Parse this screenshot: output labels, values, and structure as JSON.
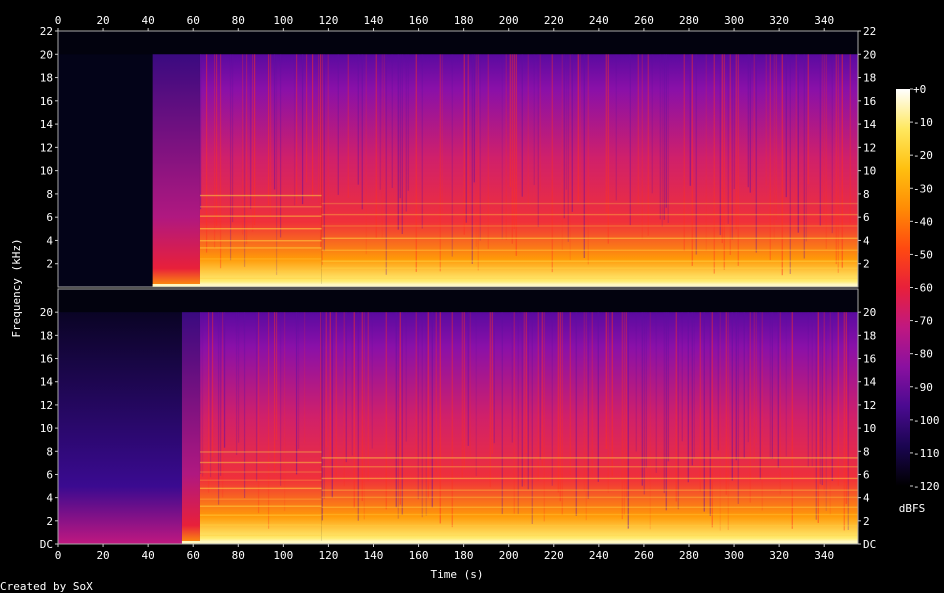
{
  "chart_data": {
    "type": "heatmap",
    "title": "",
    "xlabel": "Time (s)",
    "ylabel": "Frequency (kHz)",
    "xlim": [
      0,
      355
    ],
    "ylim": [
      0,
      22
    ],
    "x_ticks": [
      0,
      20,
      40,
      60,
      80,
      100,
      120,
      140,
      160,
      180,
      200,
      220,
      240,
      260,
      280,
      300,
      320,
      340
    ],
    "y_ticks_top": [
      {
        "value": 2,
        "label": "2"
      },
      {
        "value": 4,
        "label": "4"
      },
      {
        "value": 6,
        "label": "6"
      },
      {
        "value": 8,
        "label": "8"
      },
      {
        "value": 10,
        "label": "10"
      },
      {
        "value": 12,
        "label": "12"
      },
      {
        "value": 14,
        "label": "14"
      },
      {
        "value": 16,
        "label": "16"
      },
      {
        "value": 18,
        "label": "18"
      },
      {
        "value": 20,
        "label": "20"
      },
      {
        "value": 22,
        "label": "22"
      }
    ],
    "y_ticks_bottom": [
      {
        "value": 0,
        "label": "DC"
      },
      {
        "value": 2,
        "label": "2"
      },
      {
        "value": 4,
        "label": "4"
      },
      {
        "value": 6,
        "label": "6"
      },
      {
        "value": 8,
        "label": "8"
      },
      {
        "value": 10,
        "label": "10"
      },
      {
        "value": 12,
        "label": "12"
      },
      {
        "value": 14,
        "label": "14"
      },
      {
        "value": 16,
        "label": "16"
      },
      {
        "value": 18,
        "label": "18"
      },
      {
        "value": 20,
        "label": "20"
      }
    ],
    "colorbar": {
      "label": "dBFS",
      "range": [
        -120,
        0
      ],
      "ticks": [
        {
          "value": 0,
          "label": "+0"
        },
        {
          "value": -10,
          "label": "-10"
        },
        {
          "value": -20,
          "label": "-20"
        },
        {
          "value": -30,
          "label": "-30"
        },
        {
          "value": -40,
          "label": "-40"
        },
        {
          "value": -50,
          "label": "-50"
        },
        {
          "value": -60,
          "label": "-60"
        },
        {
          "value": -70,
          "label": "-70"
        },
        {
          "value": -80,
          "label": "-80"
        },
        {
          "value": -90,
          "label": "-90"
        },
        {
          "value": -100,
          "label": "-100"
        },
        {
          "value": -110,
          "label": "-110"
        },
        {
          "value": -120,
          "label": "-120"
        }
      ],
      "colors": [
        "#000000",
        "#1a0550",
        "#4a0a90",
        "#8a10a0",
        "#c01880",
        "#e8203a",
        "#ff4a10",
        "#ff8c05",
        "#ffc010",
        "#ffe860",
        "#ffffff"
      ]
    },
    "channels": [
      {
        "lowpass_khz": 20,
        "segments": [
          {
            "start": 0,
            "end": 42,
            "level_db": -120,
            "cutoff_khz": 20
          },
          {
            "start": 42,
            "end": 63,
            "level_db": -70,
            "cutoff_khz": 20
          },
          {
            "start": 63,
            "end": 117,
            "level_db": -55,
            "cutoff_khz": 20
          },
          {
            "start": 117,
            "end": 355,
            "level_db": -48,
            "cutoff_khz": 20
          }
        ]
      },
      {
        "lowpass_khz": 20,
        "segments": [
          {
            "start": 0,
            "end": 55,
            "level_db": -105,
            "cutoff_khz": 20
          },
          {
            "start": 55,
            "end": 63,
            "level_db": -75,
            "cutoff_khz": 20
          },
          {
            "start": 63,
            "end": 117,
            "level_db": -55,
            "cutoff_khz": 20
          },
          {
            "start": 117,
            "end": 355,
            "level_db": -48,
            "cutoff_khz": 20
          }
        ]
      }
    ]
  },
  "footer": {
    "credit": "Created by SoX"
  }
}
